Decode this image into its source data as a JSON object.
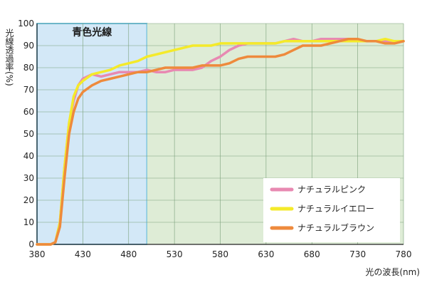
{
  "chart_data": {
    "type": "line",
    "ylabel": "光線透過率(%)",
    "xlabel": "光の波長(nm)",
    "xlim": [
      380,
      780
    ],
    "ylim": [
      0,
      100
    ],
    "x_ticks": [
      380,
      430,
      480,
      530,
      580,
      630,
      680,
      730,
      780
    ],
    "y_ticks": [
      0,
      10,
      20,
      30,
      40,
      50,
      60,
      70,
      80,
      90,
      100
    ],
    "grid": true,
    "legend_position": "bottom-right",
    "regions": [
      {
        "label": "青色光線",
        "x_start": 380,
        "x_end": 500,
        "color": "#d3e8f7",
        "border": "#2aa3d6"
      },
      {
        "label": "",
        "x_start": 500,
        "x_end": 780,
        "color": "#deecd6",
        "border": ""
      }
    ],
    "series": [
      {
        "name": "ナチュラルピンク",
        "color": "#e889b2",
        "points": [
          [
            380,
            0
          ],
          [
            395,
            0
          ],
          [
            400,
            1
          ],
          [
            405,
            10
          ],
          [
            410,
            35
          ],
          [
            415,
            55
          ],
          [
            420,
            65
          ],
          [
            425,
            72
          ],
          [
            430,
            75
          ],
          [
            435,
            76
          ],
          [
            440,
            77
          ],
          [
            450,
            76
          ],
          [
            460,
            77
          ],
          [
            470,
            78
          ],
          [
            480,
            78
          ],
          [
            490,
            78
          ],
          [
            500,
            79
          ],
          [
            510,
            78
          ],
          [
            520,
            78
          ],
          [
            530,
            79
          ],
          [
            540,
            79
          ],
          [
            550,
            79
          ],
          [
            560,
            80
          ],
          [
            570,
            83
          ],
          [
            580,
            85
          ],
          [
            590,
            88
          ],
          [
            600,
            90
          ],
          [
            610,
            91
          ],
          [
            620,
            91
          ],
          [
            630,
            91
          ],
          [
            640,
            91
          ],
          [
            650,
            92
          ],
          [
            660,
            93
          ],
          [
            670,
            92
          ],
          [
            680,
            92
          ],
          [
            690,
            93
          ],
          [
            700,
            93
          ],
          [
            710,
            93
          ],
          [
            720,
            93
          ],
          [
            730,
            92
          ],
          [
            740,
            92
          ],
          [
            750,
            92
          ],
          [
            760,
            92
          ],
          [
            770,
            92
          ],
          [
            780,
            92
          ]
        ]
      },
      {
        "name": "ナチュラルイエロー",
        "color": "#f4ea2a",
        "points": [
          [
            380,
            0
          ],
          [
            395,
            0
          ],
          [
            400,
            1
          ],
          [
            405,
            10
          ],
          [
            410,
            35
          ],
          [
            415,
            55
          ],
          [
            420,
            67
          ],
          [
            425,
            72
          ],
          [
            430,
            74
          ],
          [
            440,
            77
          ],
          [
            450,
            78
          ],
          [
            460,
            79
          ],
          [
            470,
            81
          ],
          [
            480,
            82
          ],
          [
            490,
            83
          ],
          [
            500,
            85
          ],
          [
            510,
            86
          ],
          [
            520,
            87
          ],
          [
            530,
            88
          ],
          [
            540,
            89
          ],
          [
            550,
            90
          ],
          [
            560,
            90
          ],
          [
            570,
            90
          ],
          [
            580,
            91
          ],
          [
            590,
            91
          ],
          [
            600,
            91
          ],
          [
            610,
            91
          ],
          [
            620,
            91
          ],
          [
            630,
            91
          ],
          [
            640,
            91
          ],
          [
            650,
            92
          ],
          [
            660,
            92
          ],
          [
            670,
            92
          ],
          [
            680,
            92
          ],
          [
            690,
            92
          ],
          [
            700,
            92
          ],
          [
            710,
            92
          ],
          [
            720,
            92
          ],
          [
            730,
            92
          ],
          [
            740,
            92
          ],
          [
            750,
            92
          ],
          [
            760,
            93
          ],
          [
            770,
            92
          ],
          [
            780,
            92
          ]
        ]
      },
      {
        "name": "ナチュラルブラウン",
        "color": "#ee8a3c",
        "points": [
          [
            380,
            0
          ],
          [
            395,
            0
          ],
          [
            400,
            1
          ],
          [
            405,
            8
          ],
          [
            410,
            30
          ],
          [
            415,
            50
          ],
          [
            420,
            60
          ],
          [
            425,
            66
          ],
          [
            430,
            69
          ],
          [
            440,
            72
          ],
          [
            450,
            74
          ],
          [
            460,
            75
          ],
          [
            470,
            76
          ],
          [
            480,
            77
          ],
          [
            490,
            78
          ],
          [
            500,
            78
          ],
          [
            510,
            79
          ],
          [
            520,
            80
          ],
          [
            530,
            80
          ],
          [
            540,
            80
          ],
          [
            550,
            80
          ],
          [
            560,
            81
          ],
          [
            570,
            81
          ],
          [
            580,
            81
          ],
          [
            590,
            82
          ],
          [
            600,
            84
          ],
          [
            610,
            85
          ],
          [
            620,
            85
          ],
          [
            630,
            85
          ],
          [
            640,
            85
          ],
          [
            650,
            86
          ],
          [
            660,
            88
          ],
          [
            670,
            90
          ],
          [
            680,
            90
          ],
          [
            690,
            90
          ],
          [
            700,
            91
          ],
          [
            710,
            92
          ],
          [
            720,
            93
          ],
          [
            730,
            93
          ],
          [
            740,
            92
          ],
          [
            750,
            92
          ],
          [
            760,
            91
          ],
          [
            770,
            91
          ],
          [
            780,
            92
          ]
        ]
      }
    ]
  }
}
